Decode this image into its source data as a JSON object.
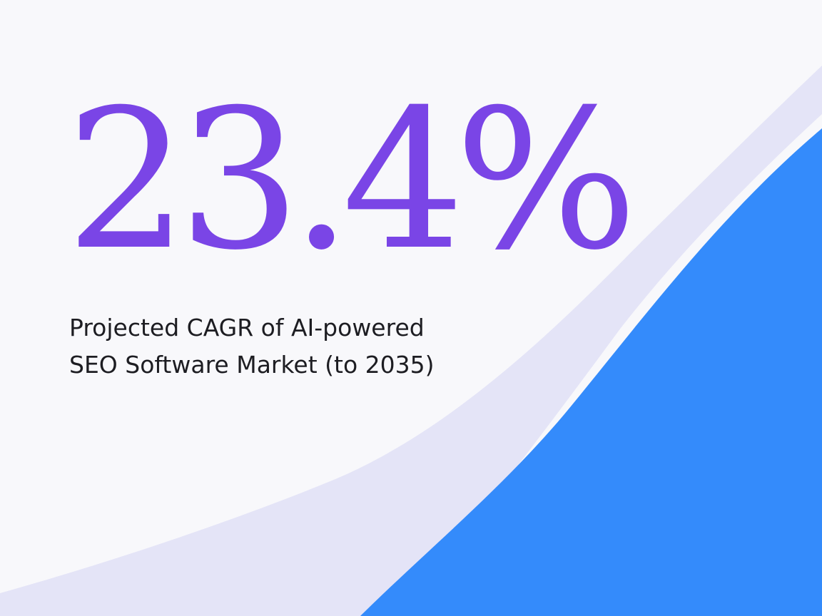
{
  "stat": {
    "value": "23.4%",
    "caption_line1": "Projected CAGR of AI-powered",
    "caption_line2": "SEO Software Market (to 2035)"
  },
  "colors": {
    "background": "#f8f8fb",
    "accent_purple": "#7a45e6",
    "ribbon_lavender": "#e4e4f7",
    "area_blue": "#348bfb",
    "caption_text": "#1d1d22"
  }
}
